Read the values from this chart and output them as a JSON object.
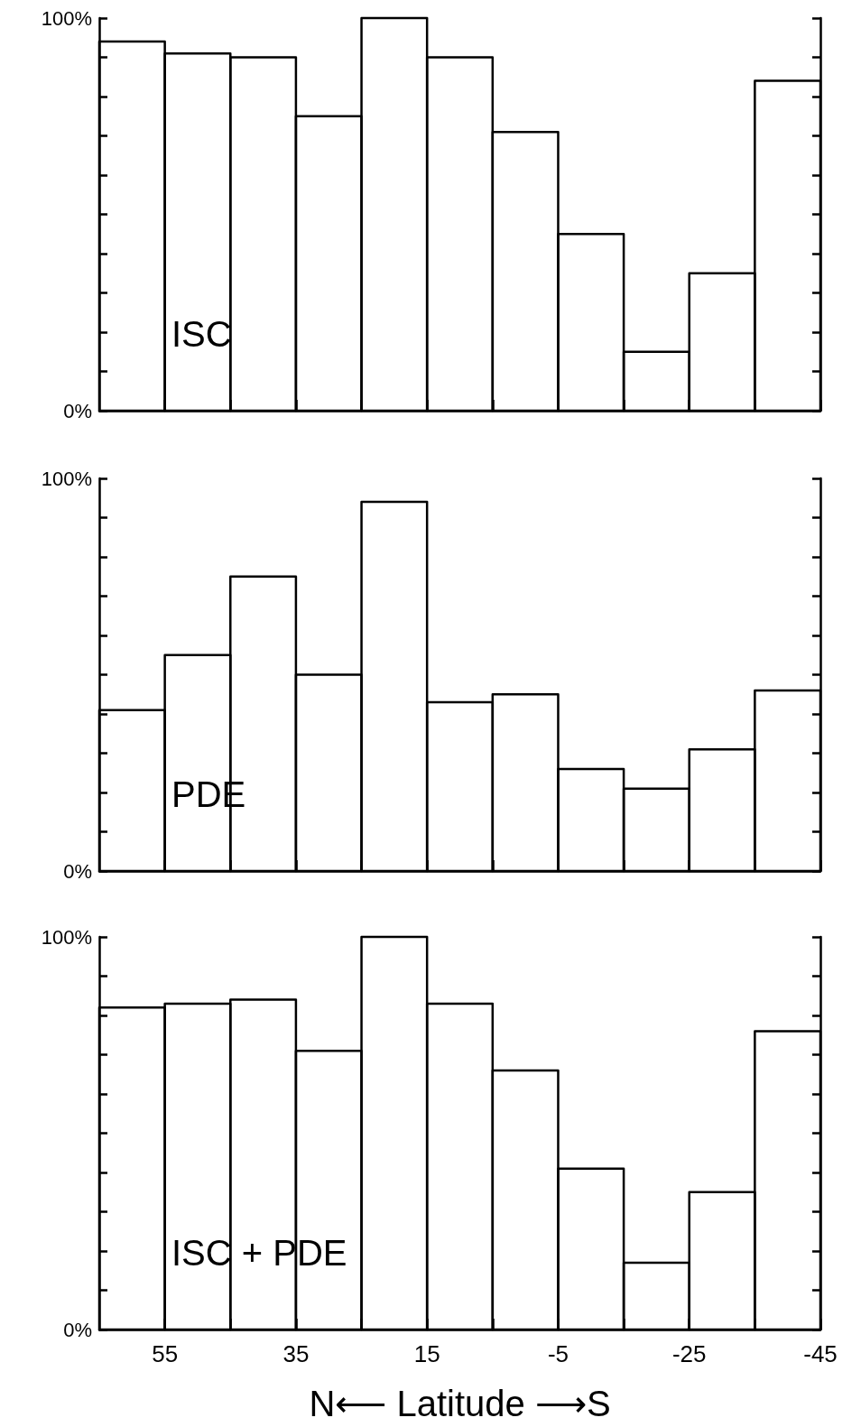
{
  "chart_data": [
    {
      "type": "histogram",
      "bins": [
        65,
        55,
        45,
        35,
        25,
        15,
        5,
        -5,
        -15,
        -25,
        -35,
        -45
      ],
      "values": [
        94,
        91,
        90,
        75,
        100,
        90,
        71,
        45,
        15,
        35,
        84
      ],
      "color": "#000000",
      "annotations": [
        "ISC"
      ],
      "xlim": [
        65,
        -45
      ],
      "xticks": [
        {
          "value": 55,
          "label": null
        },
        {
          "value": 45,
          "label": null
        },
        {
          "value": 35,
          "label": null
        },
        {
          "value": 25,
          "label": null
        },
        {
          "value": 15,
          "label": null
        },
        {
          "value": 5,
          "label": null
        },
        {
          "value": -5,
          "label": null
        },
        {
          "value": -15,
          "label": null
        },
        {
          "value": -25,
          "label": null
        },
        {
          "value": -35,
          "label": null
        },
        {
          "value": -45,
          "label": null
        }
      ],
      "ylim": [
        0,
        100
      ],
      "yticks": [
        {
          "value": 0,
          "label": "0%"
        },
        {
          "value": 10,
          "label": null
        },
        {
          "value": 20,
          "label": null
        },
        {
          "value": 30,
          "label": null
        },
        {
          "value": 40,
          "label": null
        },
        {
          "value": 50,
          "label": null
        },
        {
          "value": 60,
          "label": null
        },
        {
          "value": 70,
          "label": null
        },
        {
          "value": 80,
          "label": null
        },
        {
          "value": 90,
          "label": null
        },
        {
          "value": 100,
          "label": "100%"
        }
      ],
      "tick_labels": "y",
      "grid": false
    },
    {
      "type": "histogram",
      "bins": [
        65,
        55,
        45,
        35,
        25,
        15,
        5,
        -5,
        -15,
        -25,
        -35,
        -45
      ],
      "values": [
        41,
        55,
        75,
        50,
        94,
        43,
        45,
        26,
        21,
        31,
        46
      ],
      "color": "#000000",
      "annotations": [
        "PDE"
      ],
      "xlim": [
        65,
        -45
      ],
      "xticks": [
        {
          "value": 55,
          "label": null
        },
        {
          "value": 45,
          "label": null
        },
        {
          "value": 35,
          "label": null
        },
        {
          "value": 25,
          "label": null
        },
        {
          "value": 15,
          "label": null
        },
        {
          "value": 5,
          "label": null
        },
        {
          "value": -5,
          "label": null
        },
        {
          "value": -15,
          "label": null
        },
        {
          "value": -25,
          "label": null
        },
        {
          "value": -35,
          "label": null
        },
        {
          "value": -45,
          "label": null
        }
      ],
      "ylim": [
        0,
        100
      ],
      "yticks": [
        {
          "value": 0,
          "label": "0%"
        },
        {
          "value": 10,
          "label": null
        },
        {
          "value": 20,
          "label": null
        },
        {
          "value": 30,
          "label": null
        },
        {
          "value": 40,
          "label": null
        },
        {
          "value": 50,
          "label": null
        },
        {
          "value": 60,
          "label": null
        },
        {
          "value": 70,
          "label": null
        },
        {
          "value": 80,
          "label": null
        },
        {
          "value": 90,
          "label": null
        },
        {
          "value": 100,
          "label": "100%"
        }
      ],
      "tick_labels": "y",
      "grid": false
    },
    {
      "type": "histogram",
      "bins": [
        65,
        55,
        45,
        35,
        25,
        15,
        5,
        -5,
        -15,
        -25,
        -35,
        -45
      ],
      "values": [
        82,
        83,
        84,
        71,
        100,
        83,
        66,
        41,
        17,
        35,
        76
      ],
      "color": "#000000",
      "annotations": [
        "ISC + PDE"
      ],
      "xlabel": "N⟵ Latitude ⟶S",
      "xlim": [
        65,
        -45
      ],
      "xticks": [
        55,
        {
          "value": 45,
          "label": null
        },
        35,
        {
          "value": 25,
          "label": null
        },
        15,
        {
          "value": 5,
          "label": null
        },
        -5,
        {
          "value": -15,
          "label": null
        },
        -25,
        {
          "value": -35,
          "label": null
        },
        -45
      ],
      "ylim": [
        0,
        100
      ],
      "yticks": [
        {
          "value": 0,
          "label": "0%"
        },
        {
          "value": 10,
          "label": null
        },
        {
          "value": 20,
          "label": null
        },
        {
          "value": 30,
          "label": null
        },
        {
          "value": 40,
          "label": null
        },
        {
          "value": 50,
          "label": null
        },
        {
          "value": 60,
          "label": null
        },
        {
          "value": 70,
          "label": null
        },
        {
          "value": 80,
          "label": null
        },
        {
          "value": 90,
          "label": null
        },
        {
          "value": 100,
          "label": "100%"
        }
      ],
      "grid": false
    }
  ]
}
